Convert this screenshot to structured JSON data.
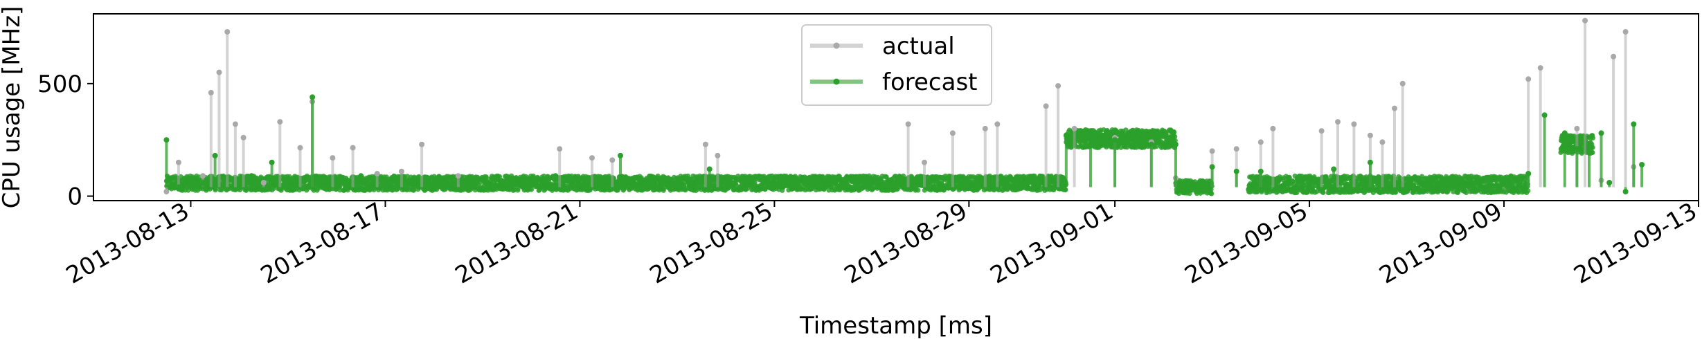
{
  "chart_data": {
    "type": "line",
    "title": "",
    "xlabel": "Timestamp [ms]",
    "ylabel": "CPU usage [MHz]",
    "x_range": [
      "2013-08-11T00:00",
      "2013-09-13T00:00"
    ],
    "ylim": [
      -20,
      810
    ],
    "x_ticks": [
      "2013-08-13",
      "2013-08-17",
      "2013-08-21",
      "2013-08-25",
      "2013-08-29",
      "2013-09-01",
      "2013-09-05",
      "2013-09-09",
      "2013-09-13"
    ],
    "y_ticks": [
      0,
      500
    ],
    "legend": {
      "location": "upper center",
      "entries": [
        "actual",
        "forecast"
      ]
    },
    "grid": false,
    "series": [
      {
        "name": "actual",
        "color": "#a9a9a9",
        "points": [
          [
            "2013-08-12T12:00",
            20
          ],
          [
            "2013-08-12T18:00",
            150
          ],
          [
            "2013-08-13T06:00",
            90
          ],
          [
            "2013-08-13T10:00",
            460
          ],
          [
            "2013-08-13T14:00",
            550
          ],
          [
            "2013-08-13T18:00",
            730
          ],
          [
            "2013-08-13T22:00",
            320
          ],
          [
            "2013-08-14T02:00",
            260
          ],
          [
            "2013-08-14T12:00",
            60
          ],
          [
            "2013-08-14T20:00",
            330
          ],
          [
            "2013-08-15T06:00",
            215
          ],
          [
            "2013-08-15T12:00",
            420
          ],
          [
            "2013-08-15T22:00",
            170
          ],
          [
            "2013-08-16T08:00",
            215
          ],
          [
            "2013-08-16T20:00",
            100
          ],
          [
            "2013-08-17T08:00",
            110
          ],
          [
            "2013-08-17T18:00",
            230
          ],
          [
            "2013-08-18T12:00",
            90
          ],
          [
            "2013-08-20T14:00",
            210
          ],
          [
            "2013-08-21T06:00",
            170
          ],
          [
            "2013-08-21T16:00",
            160
          ],
          [
            "2013-08-23T14:00",
            230
          ],
          [
            "2013-08-23T20:00",
            180
          ],
          [
            "2013-08-27T18:00",
            320
          ],
          [
            "2013-08-28T02:00",
            150
          ],
          [
            "2013-08-28T16:00",
            280
          ],
          [
            "2013-08-29T08:00",
            300
          ],
          [
            "2013-08-29T14:00",
            320
          ],
          [
            "2013-08-30T14:00",
            400
          ],
          [
            "2013-08-30T20:00",
            490
          ],
          [
            "2013-08-31T04:00",
            300
          ],
          [
            "2013-09-01T00:00",
            260
          ],
          [
            "2013-09-01T18:00",
            240
          ],
          [
            "2013-09-02T06:00",
            80
          ],
          [
            "2013-09-03T00:00",
            200
          ],
          [
            "2013-09-03T12:00",
            210
          ],
          [
            "2013-09-04T00:00",
            240
          ],
          [
            "2013-09-04T06:00",
            300
          ],
          [
            "2013-09-05T06:00",
            290
          ],
          [
            "2013-09-05T14:00",
            330
          ],
          [
            "2013-09-05T22:00",
            320
          ],
          [
            "2013-09-06T06:00",
            270
          ],
          [
            "2013-09-06T12:00",
            240
          ],
          [
            "2013-09-06T18:00",
            390
          ],
          [
            "2013-09-06T22:00",
            500
          ],
          [
            "2013-09-09T12:00",
            520
          ],
          [
            "2013-09-09T18:00",
            570
          ],
          [
            "2013-09-10T12:00",
            300
          ],
          [
            "2013-09-10T16:00",
            780
          ],
          [
            "2013-09-11T00:00",
            70
          ],
          [
            "2013-09-11T06:00",
            620
          ],
          [
            "2013-09-11T12:00",
            730
          ],
          [
            "2013-09-11T16:00",
            130
          ]
        ]
      },
      {
        "name": "forecast",
        "color": "#2ca02c",
        "points": [
          [
            "2013-08-12T12:00",
            250
          ],
          [
            "2013-08-12T18:00",
            40
          ],
          [
            "2013-08-13T06:00",
            60
          ],
          [
            "2013-08-13T12:00",
            180
          ],
          [
            "2013-08-14T06:00",
            90
          ],
          [
            "2013-08-14T16:00",
            150
          ],
          [
            "2013-08-15T00:00",
            60
          ],
          [
            "2013-08-15T12:00",
            440
          ],
          [
            "2013-08-16T12:00",
            90
          ],
          [
            "2013-08-20T12:00",
            90
          ],
          [
            "2013-08-21T20:00",
            180
          ],
          [
            "2013-08-23T16:00",
            120
          ],
          [
            "2013-08-30T18:00",
            60
          ],
          [
            "2013-08-31T00:00",
            270
          ],
          [
            "2013-08-31T12:00",
            290
          ],
          [
            "2013-09-01T00:00",
            250
          ],
          [
            "2013-09-01T18:00",
            230
          ],
          [
            "2013-09-02T06:00",
            230
          ],
          [
            "2013-09-02T12:00",
            30
          ],
          [
            "2013-09-03T00:00",
            130
          ],
          [
            "2013-09-03T12:00",
            110
          ],
          [
            "2013-09-03T18:00",
            30
          ],
          [
            "2013-09-04T00:00",
            110
          ],
          [
            "2013-09-05T12:00",
            120
          ],
          [
            "2013-09-06T06:00",
            150
          ],
          [
            "2013-09-09T12:00",
            100
          ],
          [
            "2013-09-09T20:00",
            360
          ],
          [
            "2013-09-10T06:00",
            280
          ],
          [
            "2013-09-10T12:00",
            210
          ],
          [
            "2013-09-10T18:00",
            230
          ],
          [
            "2013-09-11T00:00",
            280
          ],
          [
            "2013-09-11T04:00",
            60
          ],
          [
            "2013-09-11T12:00",
            20
          ],
          [
            "2013-09-11T16:00",
            320
          ],
          [
            "2013-09-11T20:00",
            140
          ]
        ]
      }
    ]
  }
}
